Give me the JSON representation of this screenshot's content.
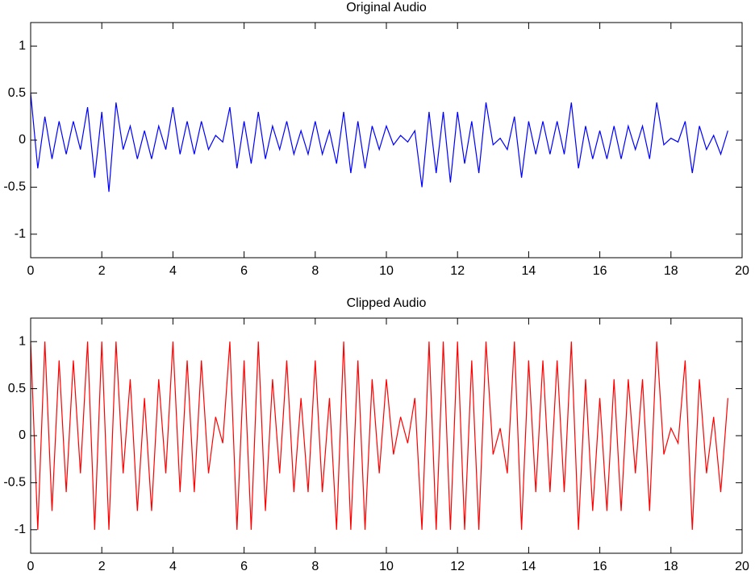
{
  "chart_data": [
    {
      "type": "line",
      "title": "Original Audio",
      "color": "#0000ff",
      "x": [
        0,
        0.2,
        0.4,
        0.6,
        0.8,
        1,
        1.2,
        1.4,
        1.6,
        1.8,
        2,
        2.2,
        2.4,
        2.6,
        2.8,
        3,
        3.2,
        3.4,
        3.6,
        3.8,
        4,
        4.2,
        4.4,
        4.6,
        4.8,
        5,
        5.2,
        5.4,
        5.6,
        5.8,
        6,
        6.2,
        6.4,
        6.6,
        6.8,
        7,
        7.2,
        7.4,
        7.6,
        7.8,
        8,
        8.2,
        8.4,
        8.6,
        8.8,
        9,
        9.2,
        9.4,
        9.6,
        9.8,
        10,
        10.2,
        10.4,
        10.6,
        10.8,
        11,
        11.2,
        11.4,
        11.6,
        11.8,
        12,
        12.2,
        12.4,
        12.6,
        12.8,
        13,
        13.2,
        13.4,
        13.6,
        13.8,
        14,
        14.2,
        14.4,
        14.6,
        14.8,
        15,
        15.2,
        15.4,
        15.6,
        15.8,
        16,
        16.2,
        16.4,
        16.6,
        16.8,
        17,
        17.2,
        17.4,
        17.6,
        17.8,
        18,
        18.2,
        18.4,
        18.6,
        18.8,
        19,
        19.2,
        19.4,
        19.6
      ],
      "values": [
        0.5,
        -0.3,
        0.25,
        -0.2,
        0.2,
        -0.15,
        0.2,
        -0.1,
        0.35,
        -0.4,
        0.3,
        -0.55,
        0.4,
        -0.1,
        0.15,
        -0.2,
        0.1,
        -0.2,
        0.15,
        -0.1,
        0.35,
        -0.15,
        0.2,
        -0.15,
        0.2,
        -0.1,
        0.05,
        -0.02,
        0.35,
        -0.3,
        0.2,
        -0.25,
        0.3,
        -0.2,
        0.15,
        -0.1,
        0.2,
        -0.15,
        0.1,
        -0.15,
        0.2,
        -0.15,
        0.1,
        -0.25,
        0.3,
        -0.35,
        0.2,
        -0.3,
        0.15,
        -0.1,
        0.15,
        -0.05,
        0.05,
        -0.02,
        0.1,
        -0.5,
        0.3,
        -0.35,
        0.3,
        -0.45,
        0.3,
        -0.25,
        0.2,
        -0.35,
        0.4,
        -0.05,
        0.02,
        -0.1,
        0.25,
        -0.4,
        0.2,
        -0.15,
        0.2,
        -0.15,
        0.2,
        -0.15,
        0.4,
        -0.3,
        0.15,
        -0.2,
        0.1,
        -0.2,
        0.15,
        -0.2,
        0.15,
        -0.1,
        0.15,
        -0.2,
        0.4,
        -0.05,
        0.02,
        -0.02,
        0.2,
        -0.35,
        0.15,
        -0.1,
        0.05,
        -0.15,
        0.1
      ],
      "xlim": [
        0,
        20
      ],
      "xticks": [
        0,
        2,
        4,
        6,
        8,
        10,
        12,
        14,
        16,
        18,
        20
      ],
      "ylim": [
        -1.25,
        1.25
      ],
      "yticks": [
        -1,
        -0.5,
        0,
        0.5,
        1
      ],
      "grid": false
    },
    {
      "type": "line",
      "title": "Clipped Audio",
      "color": "#ff0000",
      "x": [
        0,
        0.2,
        0.4,
        0.6,
        0.8,
        1,
        1.2,
        1.4,
        1.6,
        1.8,
        2,
        2.2,
        2.4,
        2.6,
        2.8,
        3,
        3.2,
        3.4,
        3.6,
        3.8,
        4,
        4.2,
        4.4,
        4.6,
        4.8,
        5,
        5.2,
        5.4,
        5.6,
        5.8,
        6,
        6.2,
        6.4,
        6.6,
        6.8,
        7,
        7.2,
        7.4,
        7.6,
        7.8,
        8,
        8.2,
        8.4,
        8.6,
        8.8,
        9,
        9.2,
        9.4,
        9.6,
        9.8,
        10,
        10.2,
        10.4,
        10.6,
        10.8,
        11,
        11.2,
        11.4,
        11.6,
        11.8,
        12,
        12.2,
        12.4,
        12.6,
        12.8,
        13,
        13.2,
        13.4,
        13.6,
        13.8,
        14,
        14.2,
        14.4,
        14.6,
        14.8,
        15,
        15.2,
        15.4,
        15.6,
        15.8,
        16,
        16.2,
        16.4,
        16.6,
        16.8,
        17,
        17.2,
        17.4,
        17.6,
        17.8,
        18,
        18.2,
        18.4,
        18.6,
        18.8,
        19,
        19.2,
        19.4,
        19.6
      ],
      "values": [
        1,
        -1,
        1,
        -0.8,
        0.8,
        -0.6,
        0.8,
        -0.4,
        1,
        -1,
        1,
        -1,
        1,
        -0.4,
        0.6,
        -0.8,
        0.4,
        -0.8,
        0.6,
        -0.4,
        1,
        -0.6,
        0.8,
        -0.6,
        0.8,
        -0.4,
        0.2,
        -0.08,
        1,
        -1,
        0.8,
        -1,
        1,
        -0.8,
        0.6,
        -0.4,
        0.8,
        -0.6,
        0.4,
        -0.6,
        0.8,
        -0.6,
        0.4,
        -1,
        1,
        -1,
        0.8,
        -1,
        0.6,
        -0.4,
        0.6,
        -0.2,
        0.2,
        -0.08,
        0.4,
        -1,
        1,
        -1,
        1,
        -1,
        1,
        -1,
        0.8,
        -1,
        1,
        -0.2,
        0.08,
        -0.4,
        1,
        -1,
        0.8,
        -0.6,
        0.8,
        -0.6,
        0.8,
        -0.6,
        1,
        -1,
        0.6,
        -0.8,
        0.4,
        -0.8,
        0.6,
        -0.8,
        0.6,
        -0.4,
        0.6,
        -0.8,
        1,
        -0.2,
        0.08,
        -0.08,
        0.8,
        -1,
        0.6,
        -0.4,
        0.2,
        -0.6,
        0.4
      ],
      "xlim": [
        0,
        20
      ],
      "xticks": [
        0,
        2,
        4,
        6,
        8,
        10,
        12,
        14,
        16,
        18,
        20
      ],
      "ylim": [
        -1.25,
        1.25
      ],
      "yticks": [
        -1,
        -0.5,
        0,
        0.5,
        1
      ],
      "grid": false
    }
  ]
}
